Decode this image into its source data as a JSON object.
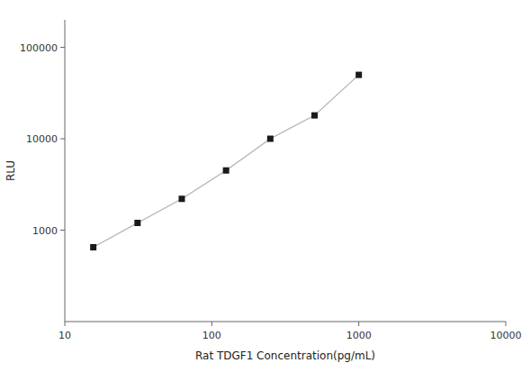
{
  "chart_data": {
    "type": "line",
    "x": [
      15.625,
      31.25,
      62.5,
      125,
      250,
      500,
      1000
    ],
    "values": [
      650,
      1200,
      2200,
      4500,
      10000,
      18000,
      50000
    ],
    "color": "#1a1a1a",
    "marker": "square",
    "xlabel": "Rat TDGF1 Concentration(pg/mL)",
    "ylabel": "RLU",
    "xlim": [
      10,
      10000
    ],
    "ylim": [
      100,
      200000
    ],
    "xticks": [
      10,
      100,
      1000,
      10000
    ],
    "yticks": [
      1000,
      10000,
      100000
    ],
    "log": true,
    "grid": false
  }
}
